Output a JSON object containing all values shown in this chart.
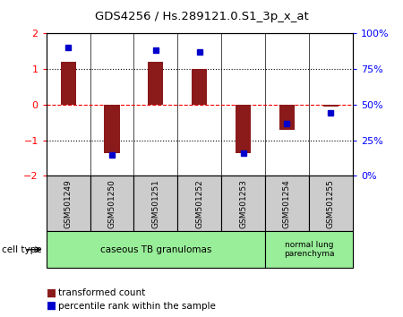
{
  "title": "GDS4256 / Hs.289121.0.S1_3p_x_at",
  "samples": [
    "GSM501249",
    "GSM501250",
    "GSM501251",
    "GSM501252",
    "GSM501253",
    "GSM501254",
    "GSM501255"
  ],
  "transformed_counts": [
    1.2,
    -1.35,
    1.2,
    1.0,
    -1.35,
    -0.7,
    -0.05
  ],
  "percentile_ranks": [
    90,
    15,
    88,
    87,
    16,
    37,
    44
  ],
  "ylim_left": [
    -2,
    2
  ],
  "ylim_right": [
    0,
    100
  ],
  "yticks_left": [
    -2,
    -1,
    0,
    1,
    2
  ],
  "yticks_right": [
    0,
    25,
    50,
    75,
    100
  ],
  "ytick_labels_right": [
    "0%",
    "25%",
    "50%",
    "75%",
    "100%"
  ],
  "bar_color": "#8B1A1A",
  "dot_color": "#0000CC",
  "bg_color": "#ffffff",
  "sample_bg": "#cccccc",
  "cell_type_bg": "#99ee99",
  "group1_count": 5,
  "group2_count": 2,
  "cell_label1": "caseous TB granulomas",
  "cell_label2": "normal lung\nparenchyma"
}
